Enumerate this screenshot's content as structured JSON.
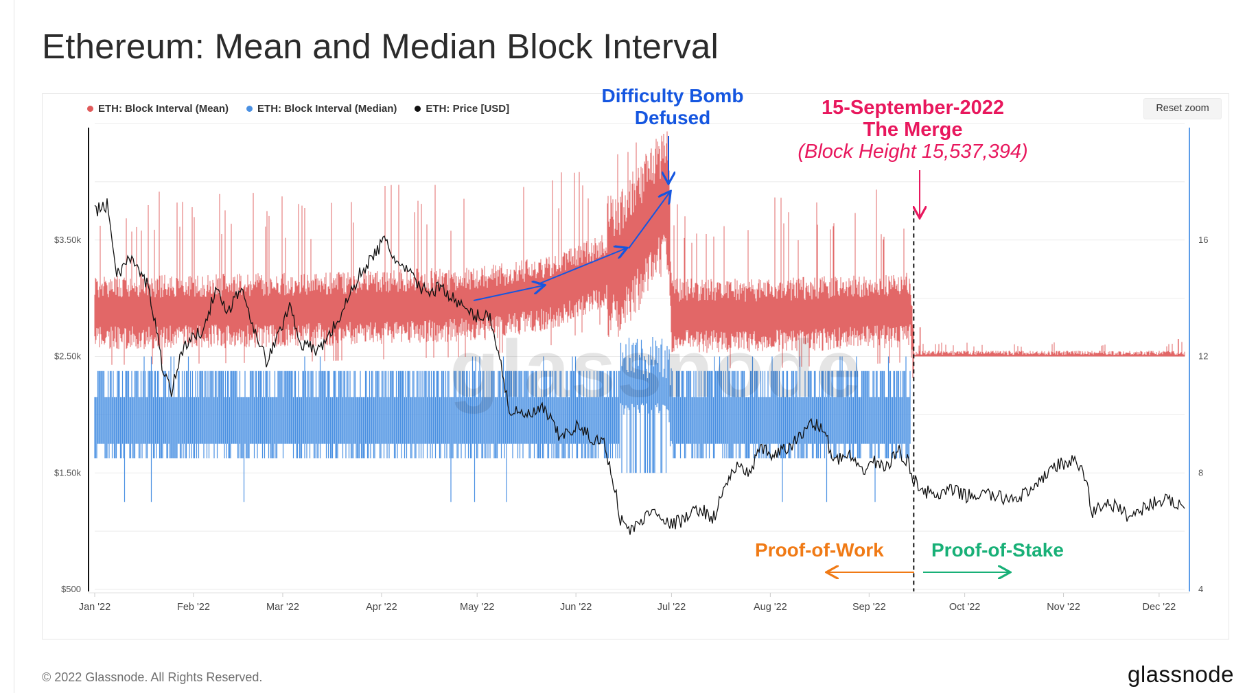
{
  "title": "Ethereum: Mean and Median Block Interval",
  "reset_zoom": "Reset zoom",
  "legend": [
    {
      "label": "ETH: Block Interval (Mean)",
      "color": "#e05a5a"
    },
    {
      "label": "ETH: Block Interval (Median)",
      "color": "#4a90e2"
    },
    {
      "label": "ETH: Price [USD]",
      "color": "#111111"
    }
  ],
  "annotations": {
    "bomb_line1": "Difficulty Bomb",
    "bomb_line2": "Defused",
    "merge_line1": "15-September-2022",
    "merge_line2": "The Merge",
    "merge_line3": "(Block Height 15,537,394)",
    "pow": "Proof-of-Work",
    "pos": "Proof-of-Stake"
  },
  "watermark": "glassnode",
  "footer": {
    "copyright": "© 2022 Glassnode. All Rights Reserved.",
    "brand": "glassnode"
  },
  "chart_data": {
    "type": "line",
    "x_tick_labels": [
      "Jan '22",
      "Feb '22",
      "Mar '22",
      "Apr '22",
      "May '22",
      "Jun '22",
      "Jul '22",
      "Aug '22",
      "Sep '22",
      "Oct '22",
      "Nov '22",
      "Dec '22"
    ],
    "y_left": {
      "ticks": [
        "$500",
        "$1.50k",
        "$2.50k",
        "$3.50k"
      ],
      "range": [
        500,
        4500
      ]
    },
    "y_right": {
      "ticks": [
        "4",
        "8",
        "12",
        "16"
      ],
      "range": [
        4,
        20
      ]
    },
    "grid": true,
    "legend_position": "top-left",
    "merge_date": "2022-09-15",
    "series": [
      {
        "name": "ETH: Block Interval (Mean)",
        "axis": "right",
        "color": "#e05a5a",
        "summary_points": [
          {
            "date": "2022-01-01",
            "value": 13.5
          },
          {
            "date": "2022-03-01",
            "value": 13.6
          },
          {
            "date": "2022-05-01",
            "value": 13.8
          },
          {
            "date": "2022-05-25",
            "value": 14.2
          },
          {
            "date": "2022-06-15",
            "value": 15.2
          },
          {
            "date": "2022-06-30",
            "value": 17.5
          },
          {
            "date": "2022-07-01",
            "value": 13.4
          },
          {
            "date": "2022-08-01",
            "value": 13.4
          },
          {
            "date": "2022-09-14",
            "value": 13.6
          },
          {
            "date": "2022-09-15",
            "value": 12.1
          },
          {
            "date": "2022-12-08",
            "value": 12.05
          }
        ]
      },
      {
        "name": "ETH: Block Interval (Median)",
        "axis": "right",
        "color": "#4a90e2",
        "summary_points": [
          {
            "date": "2022-01-01",
            "value": 10
          },
          {
            "date": "2022-06-15",
            "value": 10
          },
          {
            "date": "2022-06-30",
            "value": 11
          },
          {
            "date": "2022-07-01",
            "value": 10
          },
          {
            "date": "2022-09-14",
            "value": 10
          }
        ]
      },
      {
        "name": "ETH: Price [USD]",
        "axis": "left",
        "color": "#111111",
        "points": [
          {
            "date": "2022-01-01",
            "value": 3750
          },
          {
            "date": "2022-01-05",
            "value": 3800
          },
          {
            "date": "2022-01-08",
            "value": 3200
          },
          {
            "date": "2022-01-12",
            "value": 3350
          },
          {
            "date": "2022-01-18",
            "value": 3100
          },
          {
            "date": "2022-01-22",
            "value": 2450
          },
          {
            "date": "2022-01-25",
            "value": 2200
          },
          {
            "date": "2022-01-29",
            "value": 2600
          },
          {
            "date": "2022-02-03",
            "value": 2700
          },
          {
            "date": "2022-02-08",
            "value": 3050
          },
          {
            "date": "2022-02-12",
            "value": 2900
          },
          {
            "date": "2022-02-16",
            "value": 3100
          },
          {
            "date": "2022-02-20",
            "value": 2750
          },
          {
            "date": "2022-02-24",
            "value": 2450
          },
          {
            "date": "2022-02-28",
            "value": 2700
          },
          {
            "date": "2022-03-03",
            "value": 2950
          },
          {
            "date": "2022-03-07",
            "value": 2600
          },
          {
            "date": "2022-03-12",
            "value": 2550
          },
          {
            "date": "2022-03-16",
            "value": 2700
          },
          {
            "date": "2022-03-20",
            "value": 2900
          },
          {
            "date": "2022-03-25",
            "value": 3200
          },
          {
            "date": "2022-03-29",
            "value": 3350
          },
          {
            "date": "2022-04-02",
            "value": 3500
          },
          {
            "date": "2022-04-06",
            "value": 3300
          },
          {
            "date": "2022-04-10",
            "value": 3200
          },
          {
            "date": "2022-04-15",
            "value": 3050
          },
          {
            "date": "2022-04-20",
            "value": 3100
          },
          {
            "date": "2022-04-25",
            "value": 2950
          },
          {
            "date": "2022-04-30",
            "value": 2850
          },
          {
            "date": "2022-05-05",
            "value": 2850
          },
          {
            "date": "2022-05-08",
            "value": 2500
          },
          {
            "date": "2022-05-11",
            "value": 2050
          },
          {
            "date": "2022-05-14",
            "value": 2000
          },
          {
            "date": "2022-05-18",
            "value": 2000
          },
          {
            "date": "2022-05-22",
            "value": 2050
          },
          {
            "date": "2022-05-27",
            "value": 1800
          },
          {
            "date": "2022-06-01",
            "value": 1900
          },
          {
            "date": "2022-06-06",
            "value": 1800
          },
          {
            "date": "2022-06-10",
            "value": 1750
          },
          {
            "date": "2022-06-13",
            "value": 1400
          },
          {
            "date": "2022-06-15",
            "value": 1100
          },
          {
            "date": "2022-06-18",
            "value": 1000
          },
          {
            "date": "2022-06-22",
            "value": 1100
          },
          {
            "date": "2022-06-26",
            "value": 1200
          },
          {
            "date": "2022-06-30",
            "value": 1050
          },
          {
            "date": "2022-07-05",
            "value": 1100
          },
          {
            "date": "2022-07-10",
            "value": 1200
          },
          {
            "date": "2022-07-14",
            "value": 1100
          },
          {
            "date": "2022-07-18",
            "value": 1400
          },
          {
            "date": "2022-07-21",
            "value": 1550
          },
          {
            "date": "2022-07-25",
            "value": 1500
          },
          {
            "date": "2022-07-29",
            "value": 1700
          },
          {
            "date": "2022-08-02",
            "value": 1650
          },
          {
            "date": "2022-08-06",
            "value": 1700
          },
          {
            "date": "2022-08-10",
            "value": 1800
          },
          {
            "date": "2022-08-14",
            "value": 1950
          },
          {
            "date": "2022-08-18",
            "value": 1850
          },
          {
            "date": "2022-08-21",
            "value": 1600
          },
          {
            "date": "2022-08-26",
            "value": 1650
          },
          {
            "date": "2022-08-29",
            "value": 1500
          },
          {
            "date": "2022-09-02",
            "value": 1600
          },
          {
            "date": "2022-09-07",
            "value": 1550
          },
          {
            "date": "2022-09-10",
            "value": 1700
          },
          {
            "date": "2022-09-13",
            "value": 1600
          },
          {
            "date": "2022-09-15",
            "value": 1450
          },
          {
            "date": "2022-09-18",
            "value": 1350
          },
          {
            "date": "2022-09-22",
            "value": 1300
          },
          {
            "date": "2022-09-27",
            "value": 1350
          },
          {
            "date": "2022-10-02",
            "value": 1300
          },
          {
            "date": "2022-10-08",
            "value": 1320
          },
          {
            "date": "2022-10-13",
            "value": 1280
          },
          {
            "date": "2022-10-18",
            "value": 1300
          },
          {
            "date": "2022-10-23",
            "value": 1350
          },
          {
            "date": "2022-10-28",
            "value": 1550
          },
          {
            "date": "2022-11-01",
            "value": 1580
          },
          {
            "date": "2022-11-05",
            "value": 1600
          },
          {
            "date": "2022-11-08",
            "value": 1450
          },
          {
            "date": "2022-11-10",
            "value": 1150
          },
          {
            "date": "2022-11-14",
            "value": 1250
          },
          {
            "date": "2022-11-18",
            "value": 1200
          },
          {
            "date": "2022-11-22",
            "value": 1120
          },
          {
            "date": "2022-11-26",
            "value": 1200
          },
          {
            "date": "2022-12-01",
            "value": 1270
          },
          {
            "date": "2022-12-05",
            "value": 1250
          },
          {
            "date": "2022-12-08",
            "value": 1230
          }
        ]
      }
    ]
  }
}
